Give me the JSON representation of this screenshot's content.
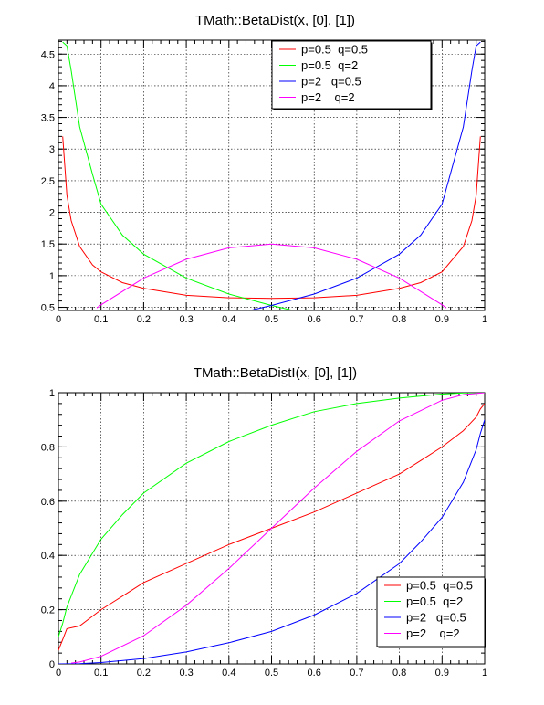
{
  "chart_data": [
    {
      "type": "line",
      "title": "TMath::BetaDist(x, [0], [1])",
      "xlim": [
        0,
        1
      ],
      "ylim": [
        0.45,
        4.72
      ],
      "x_ticks": [
        "0",
        "0.1",
        "0.2",
        "0.3",
        "0.4",
        "0.5",
        "0.6",
        "0.7",
        "0.8",
        "0.9",
        "1"
      ],
      "y_ticks": [
        "0.5",
        "1",
        "1.5",
        "2",
        "2.5",
        "3",
        "3.5",
        "4",
        "4.5"
      ],
      "grid": true,
      "legend_position": "top-right",
      "series": [
        {
          "name": "p=0.5  q=0.5",
          "color": "#ff0000",
          "x": [
            0.01,
            0.02,
            0.03,
            0.05,
            0.08,
            0.1,
            0.15,
            0.2,
            0.3,
            0.4,
            0.5,
            0.6,
            0.7,
            0.8,
            0.85,
            0.9,
            0.95,
            0.97,
            0.98,
            0.99
          ],
          "y": [
            3.2,
            2.27,
            1.87,
            1.46,
            1.17,
            1.06,
            0.89,
            0.8,
            0.69,
            0.65,
            0.64,
            0.65,
            0.69,
            0.8,
            0.89,
            1.06,
            1.46,
            1.87,
            2.27,
            3.2
          ]
        },
        {
          "name": "p=0.5  q=2",
          "color": "#00ff00",
          "x": [
            0.01,
            0.02,
            0.03,
            0.05,
            0.08,
            0.1,
            0.15,
            0.2,
            0.3,
            0.4,
            0.5,
            0.55
          ],
          "y": [
            4.69,
            4.63,
            4.24,
            3.35,
            2.6,
            2.13,
            1.64,
            1.34,
            0.96,
            0.71,
            0.53,
            0.45
          ]
        },
        {
          "name": "p=2   q=0.5",
          "color": "#0000ff",
          "x": [
            0.45,
            0.5,
            0.6,
            0.7,
            0.8,
            0.85,
            0.9,
            0.95,
            0.97,
            0.98,
            0.99
          ],
          "y": [
            0.45,
            0.53,
            0.71,
            0.96,
            1.34,
            1.64,
            2.13,
            3.35,
            4.24,
            4.63,
            4.69
          ]
        },
        {
          "name": "p=2    q=2",
          "color": "#ff00ff",
          "x": [
            0.09,
            0.1,
            0.2,
            0.3,
            0.4,
            0.5,
            0.6,
            0.7,
            0.8,
            0.9,
            0.91
          ],
          "y": [
            0.49,
            0.54,
            0.96,
            1.26,
            1.44,
            1.5,
            1.44,
            1.26,
            0.96,
            0.54,
            0.49
          ]
        }
      ]
    },
    {
      "type": "line",
      "title": "TMath::BetaDistI(x, [0], [1])",
      "xlim": [
        0,
        1
      ],
      "ylim": [
        0,
        1
      ],
      "x_ticks": [
        "0",
        "0.1",
        "0.2",
        "0.3",
        "0.4",
        "0.5",
        "0.6",
        "0.7",
        "0.8",
        "0.9",
        "1"
      ],
      "y_ticks": [
        "0",
        "0.2",
        "0.4",
        "0.6",
        "0.8",
        "1"
      ],
      "grid": true,
      "legend_position": "bottom-right",
      "series": [
        {
          "name": "p=0.5  q=0.5",
          "color": "#ff0000",
          "x": [
            0,
            0.01,
            0.02,
            0.05,
            0.1,
            0.15,
            0.2,
            0.3,
            0.4,
            0.5,
            0.6,
            0.7,
            0.8,
            0.85,
            0.9,
            0.95,
            0.98,
            0.99,
            1
          ],
          "y": [
            0.05,
            0.09,
            0.13,
            0.14,
            0.2,
            0.25,
            0.3,
            0.37,
            0.44,
            0.5,
            0.56,
            0.63,
            0.7,
            0.75,
            0.8,
            0.86,
            0.91,
            0.94,
            0.96
          ]
        },
        {
          "name": "p=0.5  q=2",
          "color": "#00ff00",
          "x": [
            0,
            0.01,
            0.02,
            0.05,
            0.1,
            0.15,
            0.2,
            0.3,
            0.4,
            0.5,
            0.6,
            0.7,
            0.8,
            0.9,
            0.95,
            1
          ],
          "y": [
            0.1,
            0.15,
            0.21,
            0.33,
            0.46,
            0.55,
            0.63,
            0.74,
            0.82,
            0.88,
            0.93,
            0.96,
            0.98,
            0.995,
            0.999,
            1
          ]
        },
        {
          "name": "p=2   q=0.5",
          "color": "#0000ff",
          "x": [
            0,
            0.05,
            0.1,
            0.2,
            0.3,
            0.4,
            0.5,
            0.6,
            0.7,
            0.8,
            0.85,
            0.9,
            0.95,
            0.98,
            0.99,
            1
          ],
          "y": [
            0,
            0.001,
            0.005,
            0.02,
            0.044,
            0.078,
            0.12,
            0.18,
            0.26,
            0.37,
            0.45,
            0.54,
            0.67,
            0.79,
            0.85,
            0.9
          ]
        },
        {
          "name": "p=2    q=2",
          "color": "#ff00ff",
          "x": [
            0.03,
            0.05,
            0.1,
            0.2,
            0.3,
            0.4,
            0.5,
            0.6,
            0.7,
            0.8,
            0.9,
            0.95,
            1
          ],
          "y": [
            0.003,
            0.007,
            0.028,
            0.104,
            0.216,
            0.352,
            0.5,
            0.648,
            0.784,
            0.896,
            0.972,
            0.993,
            1
          ]
        }
      ]
    }
  ]
}
